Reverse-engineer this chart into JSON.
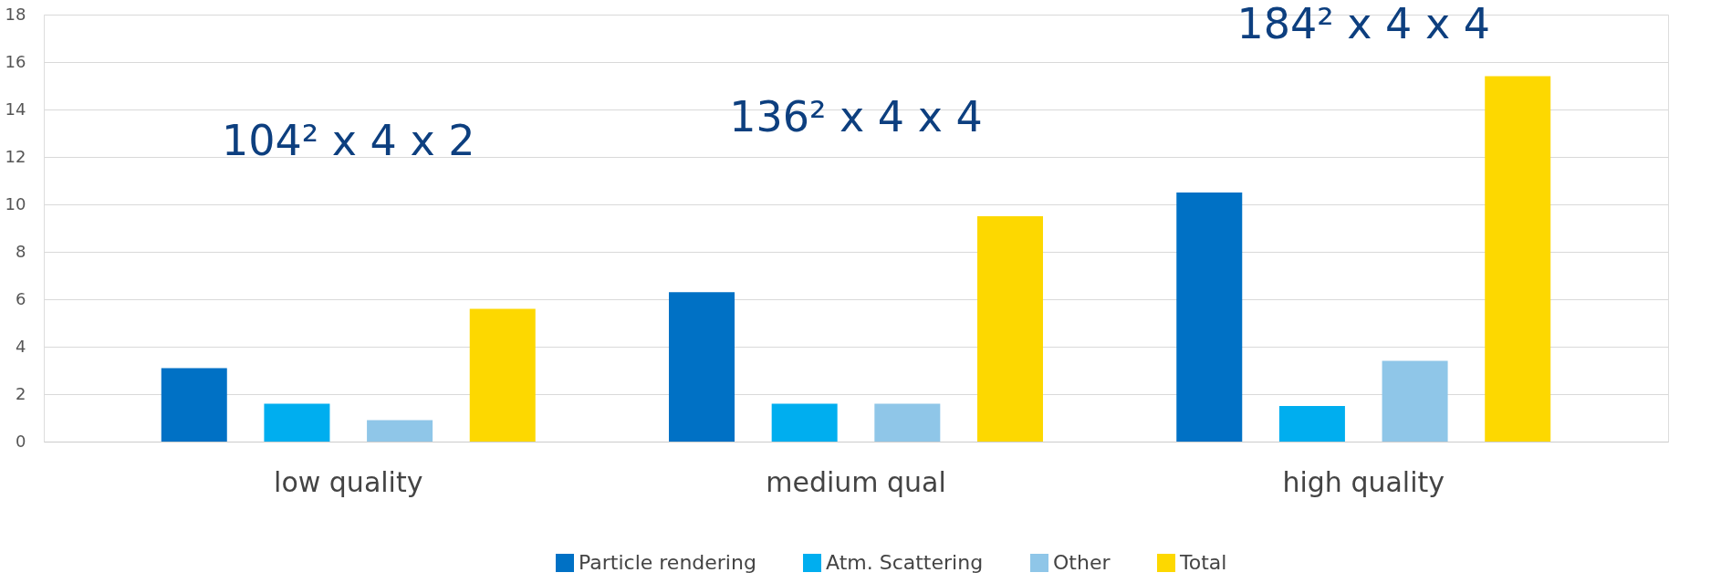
{
  "chart_data": {
    "type": "bar",
    "categories": [
      "low quality",
      "medium qual",
      "high quality"
    ],
    "series": [
      {
        "name": "Particle rendering",
        "color": "#0071c5",
        "values": [
          3.1,
          6.3,
          10.5
        ]
      },
      {
        "name": "Atm. Scattering",
        "color": "#00aeef",
        "values": [
          1.6,
          1.6,
          1.5
        ]
      },
      {
        "name": "Other",
        "color": "#8fc6e8",
        "values": [
          0.9,
          1.6,
          3.4
        ]
      },
      {
        "name": "Total",
        "color": "#fdd800",
        "values": [
          5.6,
          9.5,
          15.4
        ]
      }
    ],
    "ylim": [
      0,
      18
    ],
    "yticks": [
      0,
      2,
      4,
      6,
      8,
      10,
      12,
      14,
      16,
      18
    ],
    "grid": "y",
    "legend": "bottom",
    "annotations": [
      "104² x 4 x 2",
      "136² x 4 x 4",
      "184² x 4 x 4"
    ]
  }
}
